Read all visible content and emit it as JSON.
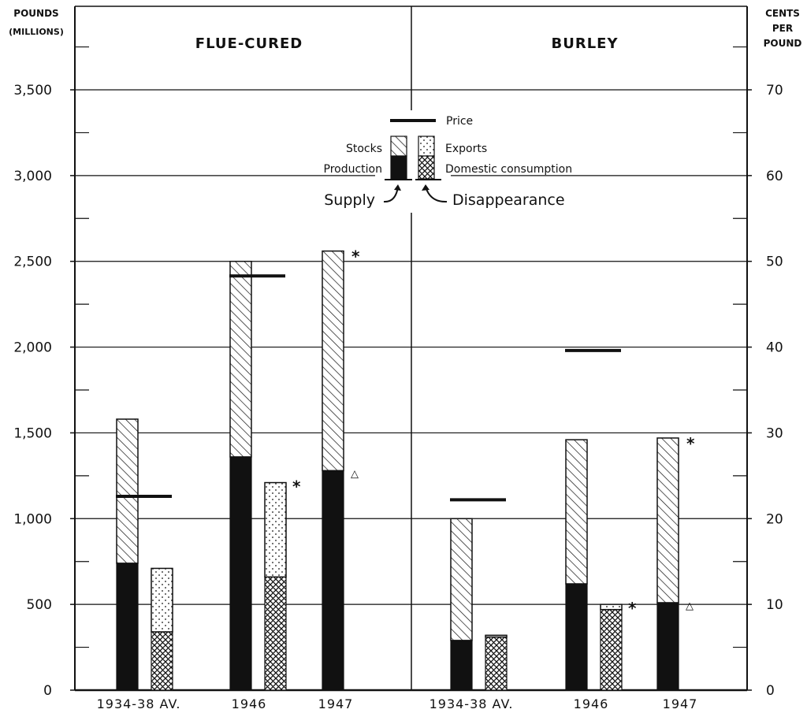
{
  "chart_data": {
    "type": "bar",
    "title": "",
    "y_left": {
      "label_line1": "POUNDS",
      "label_line2": "(MILLIONS)",
      "ylim": [
        0,
        3800
      ],
      "ticks": [
        0,
        500,
        1000,
        1500,
        2000,
        2500,
        3000,
        3500
      ],
      "tick_labels": [
        "0",
        "500",
        "1,000",
        "1,500",
        "2,000",
        "2,500",
        "3,000",
        "3,500"
      ]
    },
    "y_right": {
      "label_line1": "CENTS",
      "label_line2": "PER",
      "label_line3": "POUND",
      "ylim": [
        0,
        76
      ],
      "ticks": [
        0,
        10,
        20,
        30,
        40,
        50,
        60,
        70
      ],
      "tick_labels": [
        "0",
        "10",
        "20",
        "30",
        "40",
        "50",
        "60",
        "70"
      ]
    },
    "legend": {
      "price": "Price",
      "stocks": "Stocks",
      "exports": "Exports",
      "production": "Production",
      "domestic": "Domestic consumption",
      "supply": "Supply",
      "disappearance": "Disappearance"
    },
    "colors": {
      "ink": "#111111",
      "paper": "#ffffff"
    },
    "panels": [
      {
        "title": "FLUE-CURED",
        "groups": [
          {
            "category": "1934-38 AV.",
            "supply": {
              "production": 740,
              "stocks": 840
            },
            "disappearance": {
              "domestic": 340,
              "exports": 370
            },
            "price": 22.6,
            "supply_marker": "",
            "disappearance_marker": ""
          },
          {
            "category": "1946",
            "supply": {
              "production": 1360,
              "stocks": 1140
            },
            "disappearance": {
              "domestic": 660,
              "exports": 550
            },
            "price": 48.3,
            "supply_marker": "",
            "disappearance_marker": "*"
          },
          {
            "category": "1947",
            "supply": {
              "production": 1280,
              "stocks": 1280
            },
            "disappearance": null,
            "price": null,
            "supply_marker": "*",
            "production_marker": "△"
          }
        ]
      },
      {
        "title": "BURLEY",
        "groups": [
          {
            "category": "1934-38 AV.",
            "supply": {
              "production": 290,
              "stocks": 710
            },
            "disappearance": {
              "domestic": 310,
              "exports": 10
            },
            "price": 22.2,
            "supply_marker": "",
            "disappearance_marker": ""
          },
          {
            "category": "1946",
            "supply": {
              "production": 620,
              "stocks": 840
            },
            "disappearance": {
              "domestic": 470,
              "exports": 30
            },
            "price": 39.6,
            "supply_marker": "",
            "disappearance_marker": "*"
          },
          {
            "category": "1947",
            "supply": {
              "production": 510,
              "stocks": 960
            },
            "disappearance": null,
            "price": null,
            "supply_marker": "*",
            "production_marker": "△"
          }
        ]
      }
    ]
  }
}
